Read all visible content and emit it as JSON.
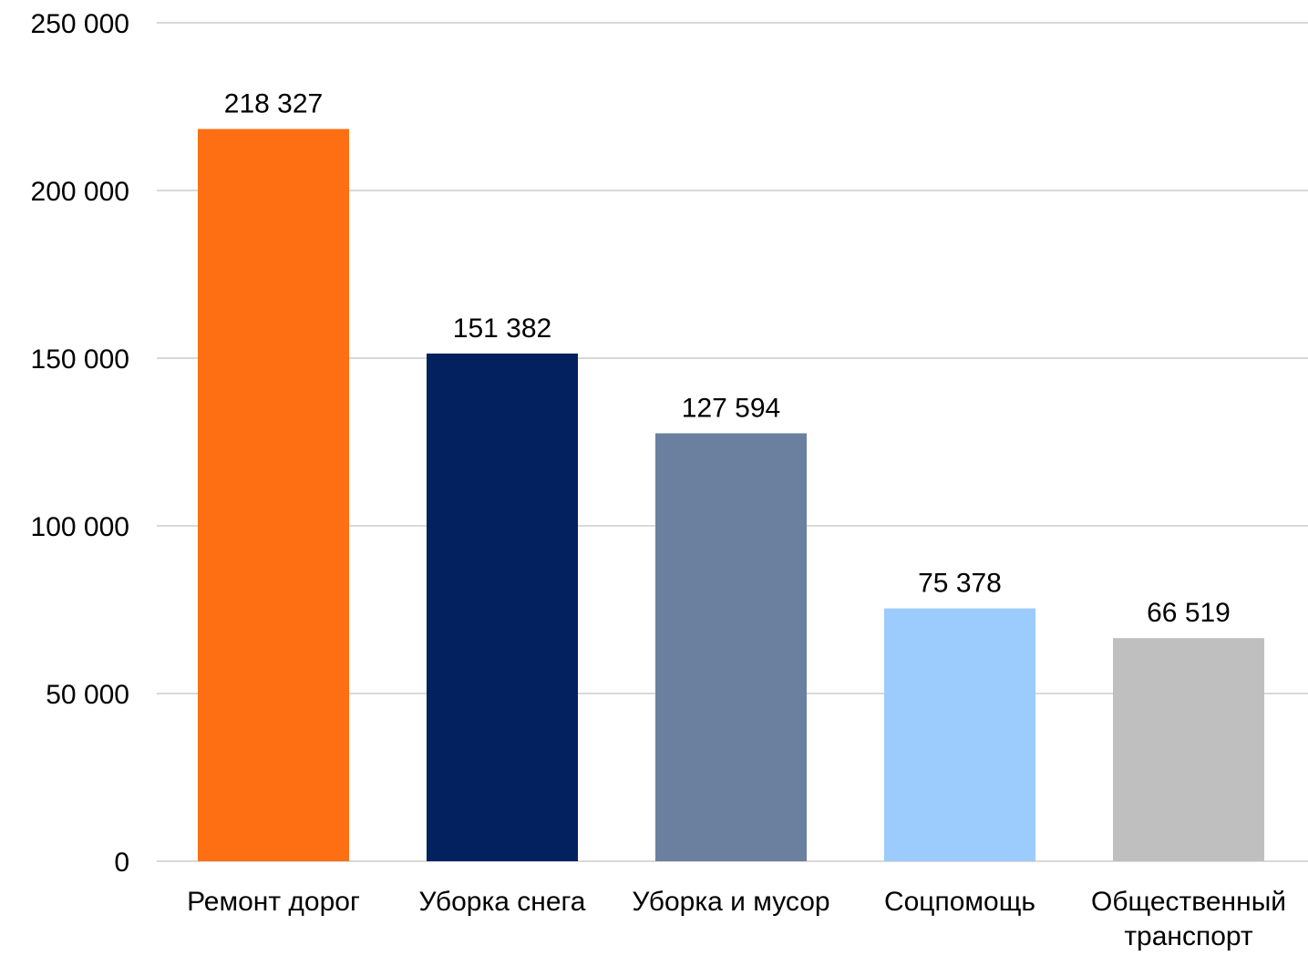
{
  "chart_data": {
    "type": "bar",
    "title": "",
    "xlabel": "",
    "ylabel": "",
    "ylim": [
      0,
      250000
    ],
    "yticks": [
      0,
      50000,
      100000,
      150000,
      200000,
      250000
    ],
    "ytick_labels": [
      "0",
      "50 000",
      "100 000",
      "150 000",
      "200 000",
      "250 000"
    ],
    "grid": true,
    "legend": "none",
    "categories": [
      [
        "Ремонт дорог"
      ],
      [
        "Уборка снега"
      ],
      [
        "Уборка и мусор"
      ],
      [
        "Соцпомощь"
      ],
      [
        "Общественный",
        "транспорт"
      ]
    ],
    "values": [
      218327,
      151382,
      127594,
      75378,
      66519
    ],
    "value_labels": [
      "218 327",
      "151 382",
      "127 594",
      "75 378",
      "66 519"
    ],
    "colors": [
      "#fd6f12",
      "#03215f",
      "#6b809f",
      "#9ccbfd",
      "#bfbfbf"
    ]
  }
}
